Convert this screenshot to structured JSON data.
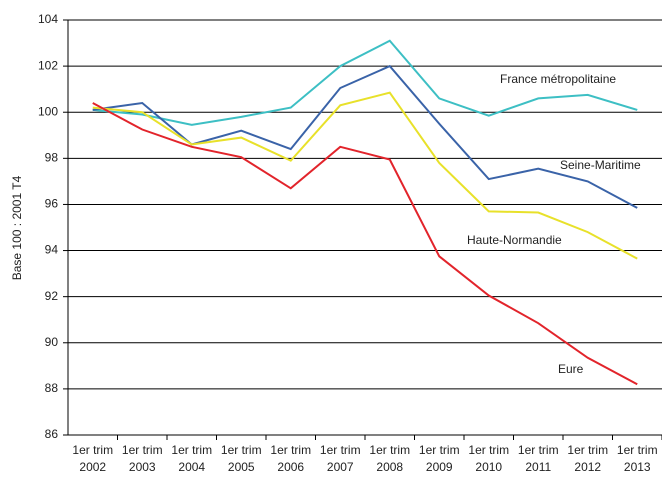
{
  "chart_data": {
    "type": "line",
    "y_label": "Base 100 : 2001 T4",
    "categories": [
      [
        "1er trim",
        "2002"
      ],
      [
        "1er trim",
        "2003"
      ],
      [
        "1er trim",
        "2004"
      ],
      [
        "1er trim",
        "2005"
      ],
      [
        "1er trim",
        "2006"
      ],
      [
        "1er trim",
        "2007"
      ],
      [
        "1er trim",
        "2008"
      ],
      [
        "1er trim",
        "2009"
      ],
      [
        "1er trim",
        "2010"
      ],
      [
        "1er trim",
        "2011"
      ],
      [
        "1er trim",
        "2012"
      ],
      [
        "1er trim",
        "2013"
      ]
    ],
    "series": [
      {
        "name": "France métropolitaine",
        "color": "#3dbfc4",
        "values": [
          100.1,
          99.9,
          99.45,
          99.8,
          100.2,
          102.0,
          103.1,
          100.6,
          99.85,
          100.6,
          100.75,
          100.1
        ]
      },
      {
        "name": "Seine-Maritime",
        "color": "#3a63a8",
        "values": [
          100.1,
          100.4,
          98.6,
          99.2,
          98.4,
          101.05,
          102.0,
          99.5,
          97.1,
          97.55,
          97.0,
          95.85
        ]
      },
      {
        "name": "Haute-Normandie",
        "color": "#e8e12a",
        "values": [
          100.2,
          100.0,
          98.6,
          98.9,
          97.9,
          100.3,
          100.85,
          97.8,
          95.7,
          95.65,
          94.8,
          93.65
        ]
      },
      {
        "name": "Eure",
        "color": "#e2242b",
        "values": [
          100.4,
          99.25,
          98.5,
          98.05,
          96.7,
          98.5,
          97.95,
          93.75,
          92.05,
          90.85,
          89.35,
          88.2
        ]
      }
    ],
    "ylim": [
      86,
      104
    ],
    "yticks": [
      86,
      88,
      90,
      92,
      94,
      96,
      98,
      100,
      102,
      104
    ],
    "grid": true
  }
}
